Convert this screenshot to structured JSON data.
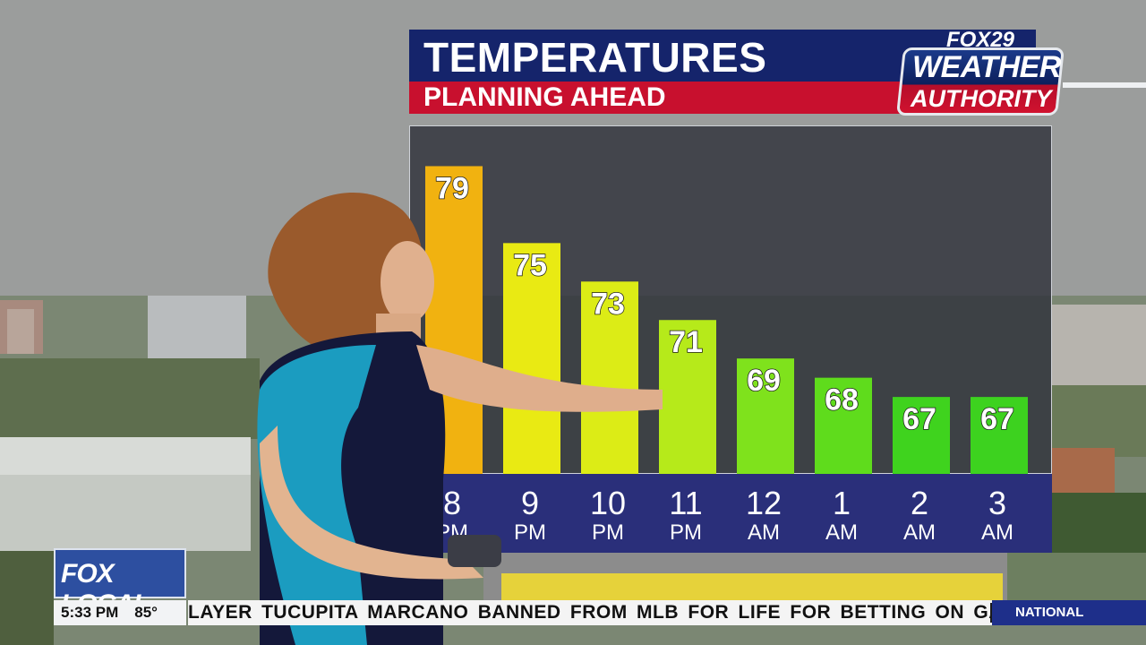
{
  "graphic": {
    "title": "TEMPERATURES",
    "subtitle": "PLANNING AHEAD"
  },
  "logo": {
    "network": "FOX29",
    "brand_line1": "WEATHER",
    "brand_line2": "AUTHORITY"
  },
  "chart_data": {
    "type": "bar",
    "categories": [
      {
        "top": "8",
        "bottom": "PM"
      },
      {
        "top": "9",
        "bottom": "PM"
      },
      {
        "top": "10",
        "bottom": "PM"
      },
      {
        "top": "11",
        "bottom": "PM"
      },
      {
        "top": "12",
        "bottom": "AM"
      },
      {
        "top": "1",
        "bottom": "AM"
      },
      {
        "top": "2",
        "bottom": "AM"
      },
      {
        "top": "3",
        "bottom": "AM"
      }
    ],
    "values": [
      79,
      75,
      73,
      71,
      69,
      68,
      67,
      67
    ],
    "bar_colors": [
      "#f1b210",
      "#e9ea13",
      "#dcec16",
      "#b6ea1a",
      "#7fe21c",
      "#5fdc1c",
      "#3fd31e",
      "#3dd21f"
    ],
    "ylim": [
      64,
      80
    ]
  },
  "lower_third": {
    "station": "FOX LOCAL",
    "time": "5:33 PM",
    "temperature": "85°",
    "ticker": "LAYER TUCUPITA MARCANO BANNED FROM MLB FOR LIFE FOR BETTING ON GAME",
    "ticker_section": "NATIONAL"
  },
  "colors": {
    "title_blue": "#15246b",
    "subtitle_red": "#c8102e",
    "axis_band": "#2a2f7a"
  }
}
